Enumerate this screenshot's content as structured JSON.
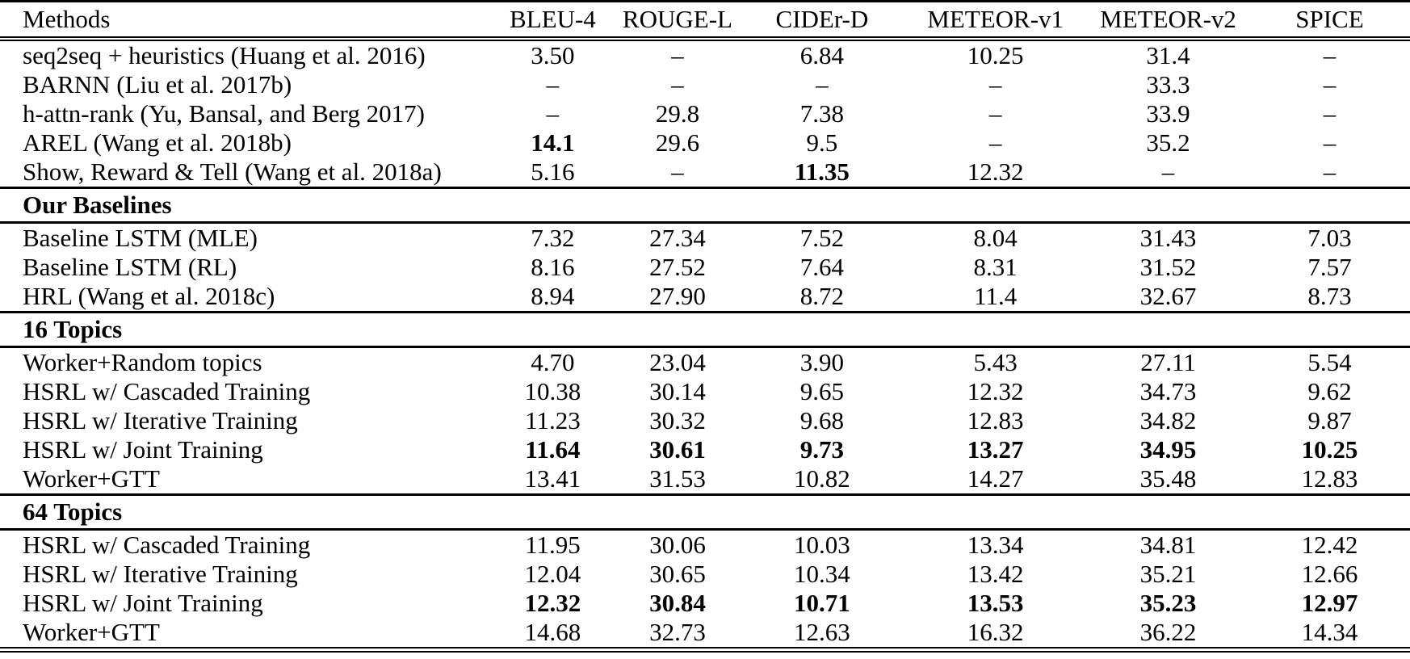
{
  "table": {
    "columns": [
      "Methods",
      "BLEU-4",
      "ROUGE-L",
      "CIDEr-D",
      "METEOR-v1",
      "METEOR-v2",
      "SPICE"
    ],
    "missing_marker": "–",
    "sections": [
      {
        "header": null,
        "rows": [
          {
            "method": "seq2seq + heuristics (Huang et al. 2016)",
            "values": [
              "3.50",
              "–",
              "6.84",
              "10.25",
              "31.4",
              "–"
            ],
            "bold": []
          },
          {
            "method": "BARNN (Liu et al. 2017b)",
            "values": [
              "–",
              "–",
              "–",
              "–",
              "33.3",
              "–"
            ],
            "bold": []
          },
          {
            "method": "h-attn-rank (Yu, Bansal, and Berg 2017)",
            "values": [
              "–",
              "29.8",
              "7.38",
              "–",
              "33.9",
              "–"
            ],
            "bold": []
          },
          {
            "method": "AREL (Wang et al. 2018b)",
            "values": [
              "14.1",
              "29.6",
              "9.5",
              "–",
              "35.2",
              "–"
            ],
            "bold": [
              0
            ]
          },
          {
            "method": "Show, Reward & Tell (Wang et al. 2018a)",
            "values": [
              "5.16",
              "–",
              "11.35",
              "12.32",
              "–",
              "–"
            ],
            "bold": [
              2
            ]
          }
        ]
      },
      {
        "header": "Our Baselines",
        "rows": [
          {
            "method": "Baseline LSTM (MLE)",
            "values": [
              "7.32",
              "27.34",
              "7.52",
              "8.04",
              "31.43",
              "7.03"
            ],
            "bold": []
          },
          {
            "method": "Baseline LSTM (RL)",
            "values": [
              "8.16",
              "27.52",
              "7.64",
              "8.31",
              "31.52",
              "7.57"
            ],
            "bold": []
          },
          {
            "method": "HRL (Wang et al. 2018c)",
            "values": [
              "8.94",
              "27.90",
              "8.72",
              "11.4",
              "32.67",
              "8.73"
            ],
            "bold": []
          }
        ]
      },
      {
        "header": "16 Topics",
        "rows": [
          {
            "method": "Worker+Random topics",
            "values": [
              "4.70",
              "23.04",
              "3.90",
              "5.43",
              "27.11",
              "5.54"
            ],
            "bold": []
          },
          {
            "method": "HSRL w/ Cascaded Training",
            "values": [
              "10.38",
              "30.14",
              "9.65",
              "12.32",
              "34.73",
              "9.62"
            ],
            "bold": []
          },
          {
            "method": "HSRL w/ Iterative Training",
            "values": [
              "11.23",
              "30.32",
              "9.68",
              "12.83",
              "34.82",
              "9.87"
            ],
            "bold": []
          },
          {
            "method": "HSRL w/ Joint Training",
            "values": [
              "11.64",
              "30.61",
              "9.73",
              "13.27",
              "34.95",
              "10.25"
            ],
            "bold": [
              0,
              1,
              2,
              3,
              4,
              5
            ]
          },
          {
            "method": "Worker+GTT",
            "values": [
              "13.41",
              "31.53",
              "10.82",
              "14.27",
              "35.48",
              "12.83"
            ],
            "bold": []
          }
        ]
      },
      {
        "header": "64 Topics",
        "rows": [
          {
            "method": "HSRL w/ Cascaded Training",
            "values": [
              "11.95",
              "30.06",
              "10.03",
              "13.34",
              "34.81",
              "12.42"
            ],
            "bold": []
          },
          {
            "method": "HSRL w/ Iterative Training",
            "values": [
              "12.04",
              "30.65",
              "10.34",
              "13.42",
              "35.21",
              "12.66"
            ],
            "bold": []
          },
          {
            "method": "HSRL w/ Joint Training",
            "values": [
              "12.32",
              "30.84",
              "10.71",
              "13.53",
              "35.23",
              "12.97"
            ],
            "bold": [
              0,
              1,
              2,
              3,
              4,
              5
            ]
          },
          {
            "method": "Worker+GTT",
            "values": [
              "14.68",
              "32.73",
              "12.63",
              "16.32",
              "36.22",
              "14.34"
            ],
            "bold": []
          }
        ]
      }
    ]
  }
}
